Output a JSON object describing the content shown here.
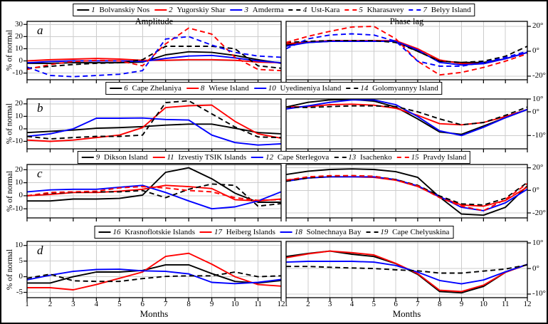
{
  "chart_data": {
    "type": "line",
    "x": [
      1,
      2,
      3,
      4,
      5,
      6,
      7,
      8,
      9,
      10,
      11,
      12
    ],
    "xlabel": "Months",
    "ylabel_left": "% of normal",
    "column_titles": [
      "Amplitude",
      "Phase lag"
    ],
    "grid_color": "#cccccc",
    "palette": {
      "black": "#000000",
      "red": "#ff0000",
      "blue": "#0000ff"
    },
    "rows": [
      {
        "letter": "a",
        "stations": [
          {
            "id": "1",
            "name": "Bolvanskiy Nos",
            "color": "black",
            "dashed": false
          },
          {
            "id": "2",
            "name": "Yugorskiy Shar",
            "color": "red",
            "dashed": false
          },
          {
            "id": "3",
            "name": "Amderma",
            "color": "blue",
            "dashed": false
          },
          {
            "id": "4",
            "name": "Ust-Kara",
            "color": "black",
            "dashed": true
          },
          {
            "id": "5",
            "name": "Kharasavey",
            "color": "red",
            "dashed": true
          },
          {
            "id": "7",
            "name": "Belyy Island",
            "color": "blue",
            "dashed": true
          }
        ],
        "amplitude": {
          "ylim": [
            -15.5,
            32.5
          ],
          "yticks": [
            30,
            20,
            10,
            0,
            -10
          ],
          "unit": "",
          "series": {
            "1": [
              -2,
              -2,
              -1.5,
              -1.5,
              -1.5,
              -1,
              5,
              7.5,
              7,
              4.5,
              1,
              -2
            ],
            "2": [
              0,
              1,
              1.5,
              2,
              1.5,
              0.5,
              0.5,
              1,
              1,
              0.5,
              -1,
              -1.5
            ],
            "3": [
              -1.5,
              -0.5,
              0,
              0,
              0,
              -0.5,
              2,
              4,
              4.5,
              2.5,
              0,
              -1.5
            ],
            "4": [
              -6,
              -4.5,
              -3,
              -2,
              -1.5,
              1,
              12,
              12,
              12,
              10,
              -4,
              -6
            ],
            "5": [
              -7,
              -3,
              -0.5,
              0.5,
              0,
              -4,
              14,
              27,
              22,
              3,
              -7,
              -8
            ],
            "7": [
              -5,
              -12,
              -13,
              -12,
              -11,
              -8,
              18,
              20,
              13,
              7,
              4,
              3
            ]
          }
        },
        "phase_lag": {
          "ylim": [
            -22.9,
            24
          ],
          "yticks": [
            20,
            0,
            -20
          ],
          "unit": "°",
          "series": {
            "1": [
              5,
              7,
              8,
              8,
              8,
              8,
              0,
              -8,
              -9,
              -9,
              -6,
              -1
            ],
            "2": [
              6,
              7.5,
              8.5,
              8.5,
              8.5,
              8.5,
              2,
              -7,
              -10,
              -10,
              -6,
              -1
            ],
            "3": [
              4,
              7,
              8,
              8,
              8,
              8,
              1,
              -9,
              -11,
              -10,
              -6,
              -1
            ],
            "4": [
              7,
              8,
              8.5,
              8.5,
              8.5,
              7,
              0,
              -8,
              -9,
              -8,
              -4,
              4
            ],
            "5": [
              7,
              12,
              16,
              19.5,
              20,
              10,
              -8,
              -19,
              -17,
              -13,
              -8,
              -2
            ],
            "7": [
              2,
              10,
              13,
              14,
              13,
              8,
              -8,
              -12,
              -12,
              -9,
              -5,
              0
            ]
          }
        }
      },
      {
        "letter": "b",
        "stations": [
          {
            "id": "6",
            "name": "Cape Zhelaniya",
            "color": "black",
            "dashed": false
          },
          {
            "id": "8",
            "name": "Wiese Island",
            "color": "red",
            "dashed": false
          },
          {
            "id": "10",
            "name": "Uyedineniya Island",
            "color": "blue",
            "dashed": false
          },
          {
            "id": "14",
            "name": "Golomyannyy Island",
            "color": "black",
            "dashed": true
          }
        ],
        "amplitude": {
          "ylim": [
            -16,
            23.9
          ],
          "yticks": [
            20,
            10,
            0,
            -10
          ],
          "unit": "",
          "series": {
            "6": [
              -3,
              -2,
              -1,
              0.5,
              1,
              1.8,
              3,
              3.8,
              3.8,
              0.5,
              -3,
              -4
            ],
            "8": [
              -9,
              -10,
              -9,
              -7,
              -5,
              1,
              17,
              18.5,
              19,
              6,
              -4,
              -7.5
            ],
            "10": [
              -6,
              -4,
              0,
              8.5,
              8.5,
              8.7,
              7.5,
              7,
              -5,
              -11,
              -13,
              -12
            ],
            "14": [
              -6,
              -8,
              -7,
              -6,
              -6,
              -5,
              21,
              22.5,
              12,
              1.5,
              -6.5,
              -7
            ]
          }
        },
        "phase_lag": {
          "ylim": [
            -15.6,
            5.4
          ],
          "yticks": [
            10,
            0,
            -10
          ],
          "unit": "°",
          "series": {
            "6": [
              2,
              4,
              5,
              5.2,
              4.5,
              2,
              -3,
              -8.5,
              -9.5,
              -6,
              -2.5,
              1
            ],
            "8": [
              2,
              2.2,
              3,
              3.2,
              2.8,
              1.5,
              -1.5,
              -5,
              -5.5,
              -4.5,
              -2,
              1
            ],
            "10": [
              1.2,
              2.5,
              4,
              5,
              5,
              3,
              -2,
              -8,
              -10,
              -6.5,
              -2.5,
              1
            ],
            "14": [
              2,
              1.8,
              2.2,
              2.5,
              2.5,
              2.2,
              0,
              -3,
              -5.5,
              -4.5,
              -1.5,
              2
            ]
          }
        }
      },
      {
        "letter": "c",
        "stations": [
          {
            "id": "9",
            "name": "Dikson Island",
            "color": "black",
            "dashed": false
          },
          {
            "id": "11",
            "name": "Izvestiy TSIK Islands",
            "color": "red",
            "dashed": false
          },
          {
            "id": "12",
            "name": "Cape Sterlegova",
            "color": "blue",
            "dashed": false
          },
          {
            "id": "13",
            "name": "Isachenko",
            "color": "black",
            "dashed": true
          },
          {
            "id": "15",
            "name": "Pravdy Island",
            "color": "red",
            "dashed": true
          }
        ],
        "amplitude": {
          "ylim": [
            -17,
            24
          ],
          "yticks": [
            20,
            10,
            0,
            -10
          ],
          "unit": "",
          "series": {
            "9": [
              -4,
              -4,
              -2.5,
              -2.5,
              -2,
              0.5,
              18,
              21.5,
              13,
              2,
              -5,
              -5
            ],
            "11": [
              0,
              1,
              2.5,
              2.5,
              3.5,
              5,
              8,
              7,
              5.5,
              -3,
              -4,
              -2.5
            ],
            "12": [
              3,
              4.5,
              5,
              5,
              6.5,
              8,
              2.5,
              -4,
              -10,
              -8.5,
              -4,
              3
            ],
            "13": [
              0,
              2,
              2.5,
              3,
              3,
              4,
              -1.5,
              5,
              9,
              8,
              -8,
              -6
            ],
            "15": [
              0,
              2.5,
              3,
              3.5,
              6,
              7,
              6,
              4,
              3,
              -1.5,
              -3.5,
              -3
            ]
          }
        },
        "phase_lag": {
          "ylim": [
            -24.4,
            22.9
          ],
          "yticks": [
            20,
            0,
            -20
          ],
          "unit": "°",
          "series": {
            "9": [
              14,
              17,
              18.5,
              19,
              18.5,
              16.5,
              11.5,
              -6,
              -21,
              -22,
              -15,
              4
            ],
            "11": [
              9,
              11,
              12,
              12,
              11.5,
              9,
              3.5,
              -6,
              -13,
              -14,
              -9,
              3
            ],
            "12": [
              8,
              11,
              12,
              12,
              12,
              9.5,
              4,
              -5.5,
              -15,
              -18,
              -11,
              1
            ],
            "13": [
              8,
              11,
              12.5,
              13,
              12.5,
              9.5,
              4.5,
              -5,
              -12,
              -13,
              -7,
              7
            ],
            "15": [
              9,
              12,
              13,
              13,
              12.5,
              9,
              4,
              -6.5,
              -14,
              -18,
              -8,
              6
            ]
          }
        }
      },
      {
        "letter": "d",
        "stations": [
          {
            "id": "16",
            "name": "Krasnoflotskie Islands",
            "color": "black",
            "dashed": false
          },
          {
            "id": "17",
            "name": "Heiberg Islands",
            "color": "red",
            "dashed": false
          },
          {
            "id": "18",
            "name": "Solnechnaya Bay",
            "color": "blue",
            "dashed": false
          },
          {
            "id": "19",
            "name": "Cape Chelyuskina",
            "color": "black",
            "dashed": true
          }
        ],
        "amplitude": {
          "ylim": [
            -6.7,
            11.3
          ],
          "yticks": [
            10,
            5,
            0,
            -5
          ],
          "unit": "",
          "series": {
            "16": [
              -2,
              -2,
              0,
              1.5,
              1.5,
              2,
              3.8,
              3.8,
              1,
              -1.5,
              -2,
              -1.2
            ],
            "17": [
              -3.5,
              -3.5,
              -4.2,
              -2.5,
              -0.5,
              1.5,
              6.5,
              7.5,
              4,
              0,
              -2.5,
              -3
            ],
            "18": [
              -1,
              0.5,
              1.7,
              2.3,
              2.4,
              1.9,
              1.7,
              0.9,
              -1.8,
              -2.2,
              -1.8,
              -0.9
            ],
            "19": [
              -0.5,
              0.8,
              -1.3,
              -1.5,
              -1.5,
              -0.6,
              0.1,
              0.3,
              0.3,
              1.5,
              0,
              0.3
            ]
          }
        },
        "phase_lag": {
          "ylim": [
            -11.4,
            10.6
          ],
          "yticks": [
            10,
            0,
            -10
          ],
          "unit": "°",
          "series": {
            "16": [
              4.7,
              5.9,
              6.8,
              5.6,
              4.7,
              1.9,
              -2.3,
              -9,
              -9.5,
              -7,
              -1.5,
              1.6
            ],
            "17": [
              4.2,
              5.7,
              6.8,
              6.2,
              5.3,
              2,
              -2,
              -8.5,
              -9,
              -6.5,
              -1.5,
              1.6
            ],
            "18": [
              2.5,
              2.8,
              2.8,
              2.8,
              2.5,
              1.2,
              -1.4,
              -4.7,
              -6,
              -4.5,
              -1.3,
              1.6
            ],
            "19": [
              0.8,
              0.8,
              0.5,
              0.2,
              0,
              -0.5,
              -0.9,
              -1.8,
              -1.8,
              -1,
              -0.2,
              1.4
            ]
          }
        }
      }
    ]
  }
}
